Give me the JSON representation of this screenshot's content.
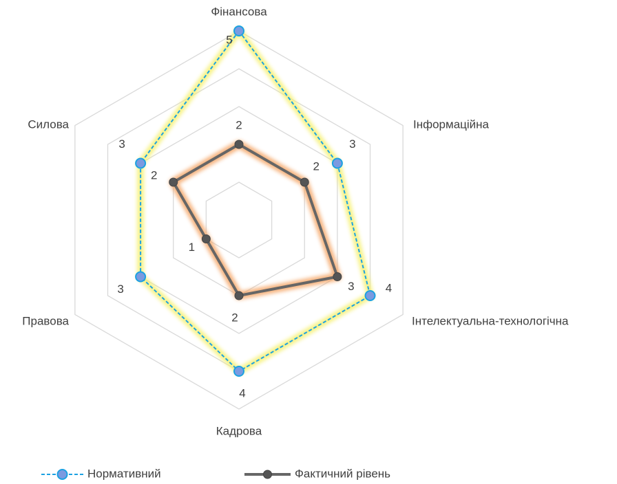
{
  "chart_data": {
    "type": "radar",
    "categories": [
      "Фінансова",
      "Інформаційна",
      "Інтелектуальна-технологічна",
      "Кадрова",
      "Правова",
      "Силова"
    ],
    "series": [
      {
        "name": "Нормативний",
        "color": "#1ba1e2",
        "values": [
          5,
          3,
          4,
          4,
          3,
          3
        ]
      },
      {
        "name": "Фактичний рівень",
        "color": "#666666",
        "values": [
          2,
          2,
          3,
          2,
          1,
          2
        ]
      }
    ],
    "ylim": [
      0,
      5
    ],
    "yticks": [
      1,
      2,
      3,
      4,
      5
    ],
    "grid": true,
    "legend": "bottom"
  }
}
